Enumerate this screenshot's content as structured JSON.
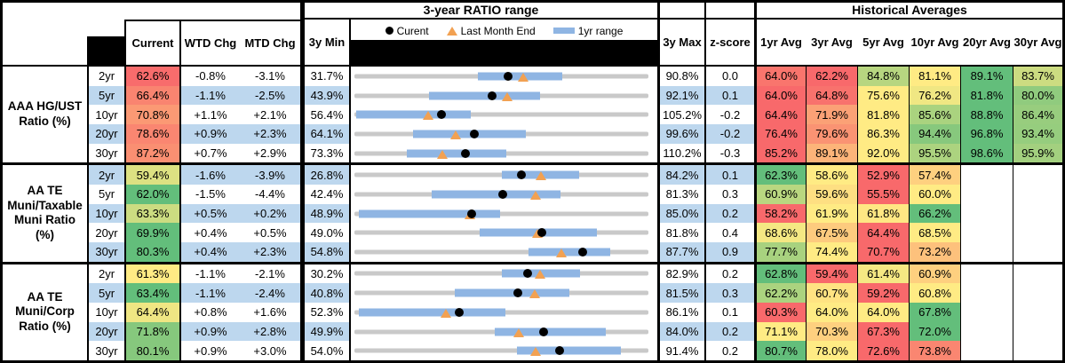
{
  "header": {
    "range_title": "3-year RATIO range",
    "hist_title": "Historical Averages",
    "col_current": "Current",
    "col_wtd": "WTD Chg",
    "col_mtd": "MTD Chg",
    "col_min": "3y Min",
    "col_max": "3y Max",
    "col_z": "z-score",
    "avg_cols": [
      "1yr Avg",
      "3yr Avg",
      "5yr Avg",
      "10yr Avg",
      "20yr Avg",
      "30yr Avg"
    ],
    "legend": [
      {
        "marker": "dot",
        "label": "Curent"
      },
      {
        "marker": "triangle",
        "label": "Last Month End"
      },
      {
        "marker": "bar",
        "label": "1yr range"
      }
    ]
  },
  "colors": {
    "scale_min": "#F8696B",
    "scale_mid": "#FFEB84",
    "scale_max": "#63BE7B",
    "row_shade": "#BDD7EE",
    "bar_blue": "#8FB5E3",
    "track_gray": "#C9C9C9",
    "marker_orange": "#F2A152",
    "marker_black": "#000000"
  },
  "chart_data": {
    "type": "table",
    "title": "3-year RATIO range with historical averages",
    "columns": [
      "Current",
      "WTD Chg",
      "MTD Chg",
      "3y Min",
      "3-year RATIO range",
      "3y Max",
      "z-score",
      "1yr Avg",
      "3yr Avg",
      "5yr Avg",
      "10yr Avg",
      "20yr Avg",
      "30yr Avg"
    ],
    "groups": [
      {
        "label": "AAA HG/UST Ratio (%)",
        "rows": [
          {
            "tenor": "2yr",
            "current": 62.6,
            "wtd_chg": "-0.8%",
            "mtd_chg": "-3.1%",
            "min_3y": 31.7,
            "max_3y": 90.8,
            "z_score": "0.0",
            "last_month": 65.7,
            "range_1yr": [
              56.5,
              73.4
            ],
            "avgs": [
              64.0,
              62.2,
              84.8,
              81.1,
              89.1,
              83.7
            ]
          },
          {
            "tenor": "5yr",
            "current": 66.4,
            "wtd_chg": "-1.1%",
            "mtd_chg": "-2.5%",
            "min_3y": 43.9,
            "max_3y": 92.1,
            "z_score": "0.1",
            "last_month": 68.9,
            "range_1yr": [
              56.2,
              74.3
            ],
            "avgs": [
              64.0,
              64.8,
              75.6,
              76.2,
              81.8,
              80.0
            ]
          },
          {
            "tenor": "10yr",
            "current": 70.8,
            "wtd_chg": "+1.1%",
            "mtd_chg": "+2.1%",
            "min_3y": 56.4,
            "max_3y": 105.2,
            "z_score": "-0.2",
            "last_month": 68.7,
            "range_1yr": [
              56.7,
              75.7
            ],
            "avgs": [
              64.4,
              71.9,
              81.8,
              85.6,
              88.8,
              86.4
            ]
          },
          {
            "tenor": "20yr",
            "current": 78.6,
            "wtd_chg": "+0.9%",
            "mtd_chg": "+2.3%",
            "min_3y": 64.1,
            "max_3y": 99.6,
            "z_score": "-0.2",
            "last_month": 76.3,
            "range_1yr": [
              71.2,
              84.8
            ],
            "avgs": [
              76.4,
              79.6,
              86.3,
              94.4,
              96.8,
              93.4
            ]
          },
          {
            "tenor": "30yr",
            "current": 87.2,
            "wtd_chg": "+0.7%",
            "mtd_chg": "+2.9%",
            "min_3y": 73.3,
            "max_3y": 110.2,
            "z_score": "-0.3",
            "last_month": 84.3,
            "range_1yr": [
              79.9,
              92.4
            ],
            "avgs": [
              85.2,
              89.1,
              92.0,
              95.5,
              98.6,
              95.9
            ]
          }
        ]
      },
      {
        "label": "AA TE Muni/Taxable Muni Ratio (%)",
        "rows": [
          {
            "tenor": "2yr",
            "current": 59.4,
            "wtd_chg": "-1.6%",
            "mtd_chg": "-3.9%",
            "min_3y": 26.8,
            "max_3y": 84.2,
            "z_score": "0.1",
            "last_month": 63.3,
            "range_1yr": [
              55.6,
              70.6
            ],
            "avgs": [
              62.3,
              58.6,
              52.9,
              57.4,
              null,
              null
            ]
          },
          {
            "tenor": "5yr",
            "current": 62.0,
            "wtd_chg": "-1.5%",
            "mtd_chg": "-4.4%",
            "min_3y": 42.4,
            "max_3y": 81.3,
            "z_score": "0.3",
            "last_month": 66.4,
            "range_1yr": [
              52.6,
              69.7
            ],
            "avgs": [
              60.9,
              59.6,
              55.5,
              60.0,
              null,
              null
            ]
          },
          {
            "tenor": "10yr",
            "current": 63.3,
            "wtd_chg": "+0.5%",
            "mtd_chg": "+0.2%",
            "min_3y": 48.9,
            "max_3y": 85.0,
            "z_score": "0.2",
            "last_month": 63.1,
            "range_1yr": [
              49.4,
              66.8
            ],
            "avgs": [
              58.2,
              61.9,
              61.8,
              66.2,
              null,
              null
            ]
          },
          {
            "tenor": "20yr",
            "current": 69.9,
            "wtd_chg": "+0.4%",
            "mtd_chg": "+0.5%",
            "min_3y": 49.0,
            "max_3y": 81.8,
            "z_score": "0.4",
            "last_month": 69.4,
            "range_1yr": [
              63.0,
              76.1
            ],
            "avgs": [
              68.6,
              67.5,
              64.4,
              68.5,
              null,
              null
            ]
          },
          {
            "tenor": "30yr",
            "current": 80.3,
            "wtd_chg": "+0.4%",
            "mtd_chg": "+2.3%",
            "min_3y": 54.8,
            "max_3y": 87.7,
            "z_score": "0.9",
            "last_month": 78.0,
            "range_1yr": [
              74.3,
              83.4
            ],
            "avgs": [
              77.7,
              74.4,
              70.7,
              73.2,
              null,
              null
            ]
          }
        ]
      },
      {
        "label": "AA TE Muni/Corp Ratio (%)",
        "rows": [
          {
            "tenor": "2yr",
            "current": 61.3,
            "wtd_chg": "-1.1%",
            "mtd_chg": "-2.1%",
            "min_3y": 30.2,
            "max_3y": 82.9,
            "z_score": "0.2",
            "last_month": 63.4,
            "range_1yr": [
              56.6,
              70.6
            ],
            "avgs": [
              62.8,
              59.4,
              61.4,
              60.9,
              null,
              null
            ]
          },
          {
            "tenor": "5yr",
            "current": 63.4,
            "wtd_chg": "-1.1%",
            "mtd_chg": "-2.4%",
            "min_3y": 40.8,
            "max_3y": 81.5,
            "z_score": "0.3",
            "last_month": 65.8,
            "range_1yr": [
              54.7,
              70.6
            ],
            "avgs": [
              62.2,
              60.7,
              59.2,
              60.8,
              null,
              null
            ]
          },
          {
            "tenor": "10yr",
            "current": 64.4,
            "wtd_chg": "+0.8%",
            "mtd_chg": "+1.6%",
            "min_3y": 52.3,
            "max_3y": 86.1,
            "z_score": "0.1",
            "last_month": 62.8,
            "range_1yr": [
              52.8,
              69.7
            ],
            "avgs": [
              60.3,
              64.0,
              64.0,
              67.8,
              null,
              null
            ]
          },
          {
            "tenor": "20yr",
            "current": 71.8,
            "wtd_chg": "+0.9%",
            "mtd_chg": "+2.8%",
            "min_3y": 49.9,
            "max_3y": 84.0,
            "z_score": "0.2",
            "last_month": 69.0,
            "range_1yr": [
              66.2,
              79.1
            ],
            "avgs": [
              71.1,
              70.3,
              67.3,
              72.0,
              null,
              null
            ]
          },
          {
            "tenor": "30yr",
            "current": 80.1,
            "wtd_chg": "+0.9%",
            "mtd_chg": "+3.0%",
            "min_3y": 54.0,
            "max_3y": 91.4,
            "z_score": "0.2",
            "last_month": 77.1,
            "range_1yr": [
              74.7,
              87.9
            ],
            "avgs": [
              80.7,
              78.0,
              72.6,
              73.8,
              null,
              null
            ]
          }
        ]
      }
    ]
  }
}
